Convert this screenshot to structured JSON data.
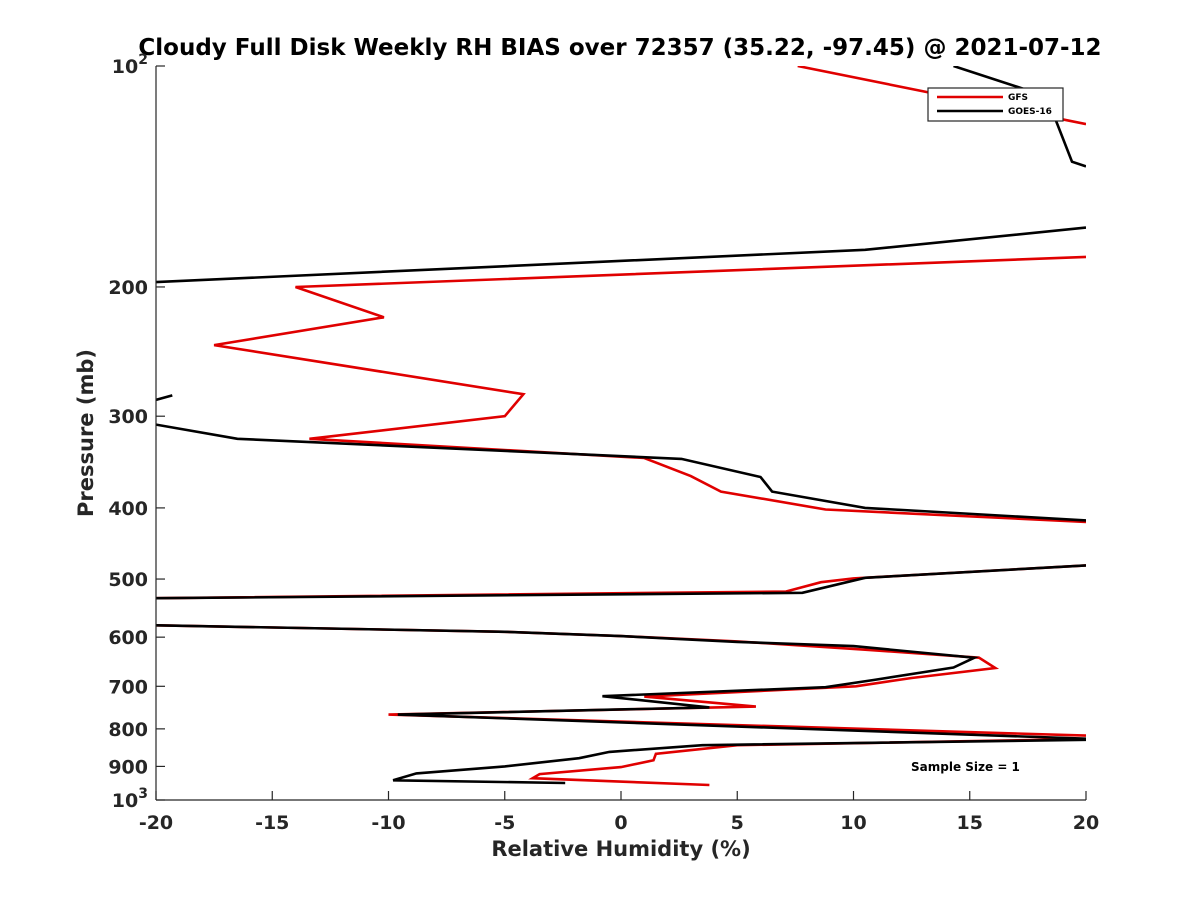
{
  "chart_data": {
    "type": "line",
    "title": "Cloudy Full Disk Weekly RH BIAS over 72357 (35.22, -97.45) @ 2021-07-12",
    "xlabel": "Relative Humidity (%)",
    "ylabel": "Pressure (mb)",
    "xlim": [
      -20,
      20
    ],
    "ylim": [
      100,
      1000
    ],
    "y_scale": "log",
    "y_reversed": true,
    "x_ticks": [
      -20,
      -15,
      -10,
      -5,
      0,
      5,
      10,
      15,
      20
    ],
    "x_tick_labels": [
      "-20",
      "-15",
      "-10",
      "-5",
      "0",
      "5",
      "10",
      "15",
      "20"
    ],
    "y_ticks": [
      100,
      200,
      300,
      400,
      500,
      600,
      700,
      800,
      900,
      1000
    ],
    "y_tick_labels": [
      {
        "base": "10",
        "exp": "2"
      },
      {
        "base": "200",
        "exp": ""
      },
      {
        "base": "300",
        "exp": ""
      },
      {
        "base": "400",
        "exp": ""
      },
      {
        "base": "500",
        "exp": ""
      },
      {
        "base": "600",
        "exp": ""
      },
      {
        "base": "700",
        "exp": ""
      },
      {
        "base": "800",
        "exp": ""
      },
      {
        "base": "900",
        "exp": ""
      },
      {
        "base": "10",
        "exp": "3"
      }
    ],
    "legend": {
      "placement": "top-right",
      "entries": [
        "GFS",
        "GOES-16"
      ]
    },
    "annotation": "Sample Size = 1",
    "grid": false,
    "series": [
      {
        "name": "GFS",
        "color": "#e00000",
        "points": [
          [
            7.6,
            100
          ],
          [
            20,
            120
          ],
          [
            null,
            null
          ],
          [
            20,
            182
          ],
          [
            -14,
            200
          ],
          [
            -10.2,
            220
          ],
          [
            -17.5,
            240
          ],
          [
            -4.2,
            280
          ],
          [
            -5.0,
            300
          ],
          [
            -13.4,
            322
          ],
          [
            1.0,
            342
          ],
          [
            3.0,
            362
          ],
          [
            4.3,
            380
          ],
          [
            8.8,
            402
          ],
          [
            20,
            418
          ],
          [
            null,
            null
          ],
          [
            20,
            479
          ],
          [
            10,
            499
          ],
          [
            8.6,
            505
          ],
          [
            7.1,
            520
          ],
          [
            -20,
            531
          ],
          [
            null,
            null
          ],
          [
            -20,
            578
          ],
          [
            -5,
            590
          ],
          [
            0,
            598
          ],
          [
            5,
            608
          ],
          [
            10.5,
            624
          ],
          [
            15.4,
            640
          ],
          [
            16.1,
            661
          ],
          [
            12.5,
            682
          ],
          [
            10.1,
            700
          ],
          [
            1.0,
            723
          ],
          [
            5.8,
            746
          ],
          [
            -10,
            765
          ],
          [
            20,
            817
          ],
          [
            null,
            null
          ],
          [
            20,
            826
          ],
          [
            5,
            842
          ],
          [
            1.5,
            865
          ],
          [
            1.4,
            883
          ],
          [
            0,
            902
          ],
          [
            -3.5,
            922
          ],
          [
            -3.8,
            934
          ],
          [
            3.8,
            954
          ]
        ]
      },
      {
        "name": "GOES-16",
        "color": "#000000",
        "points": [
          [
            14.3,
            100
          ],
          [
            18.3,
            110
          ],
          [
            19.4,
            135
          ],
          [
            20,
            137
          ],
          [
            null,
            null
          ],
          [
            20,
            166
          ],
          [
            10.5,
            178
          ],
          [
            -20,
            197
          ],
          [
            null,
            null
          ],
          [
            -19.3,
            281
          ],
          [
            -20,
            285
          ],
          [
            null,
            null
          ],
          [
            -20,
            308
          ],
          [
            -16.5,
            322
          ],
          [
            2.6,
            343
          ],
          [
            6.0,
            363
          ],
          [
            6.5,
            380
          ],
          [
            10.5,
            400
          ],
          [
            20,
            416
          ],
          [
            null,
            null
          ],
          [
            20,
            479
          ],
          [
            10.5,
            498
          ],
          [
            7.8,
            522
          ],
          [
            -20,
            531
          ],
          [
            null,
            null
          ],
          [
            -20,
            578
          ],
          [
            -5,
            590
          ],
          [
            0,
            598
          ],
          [
            5,
            609
          ],
          [
            10,
            617
          ],
          [
            15.2,
            640
          ],
          [
            14.3,
            660
          ],
          [
            10.9,
            686
          ],
          [
            8.8,
            702
          ],
          [
            -0.8,
            722
          ],
          [
            3.8,
            748
          ],
          [
            -9.6,
            765
          ],
          [
            20,
            825
          ],
          [
            null,
            null
          ],
          [
            20,
            828
          ],
          [
            3.5,
            842
          ],
          [
            -0.5,
            860
          ],
          [
            -1.8,
            877
          ],
          [
            -5,
            900
          ],
          [
            -8.8,
            920
          ],
          [
            -9.8,
            940
          ],
          [
            -2.4,
            948
          ]
        ]
      }
    ]
  }
}
